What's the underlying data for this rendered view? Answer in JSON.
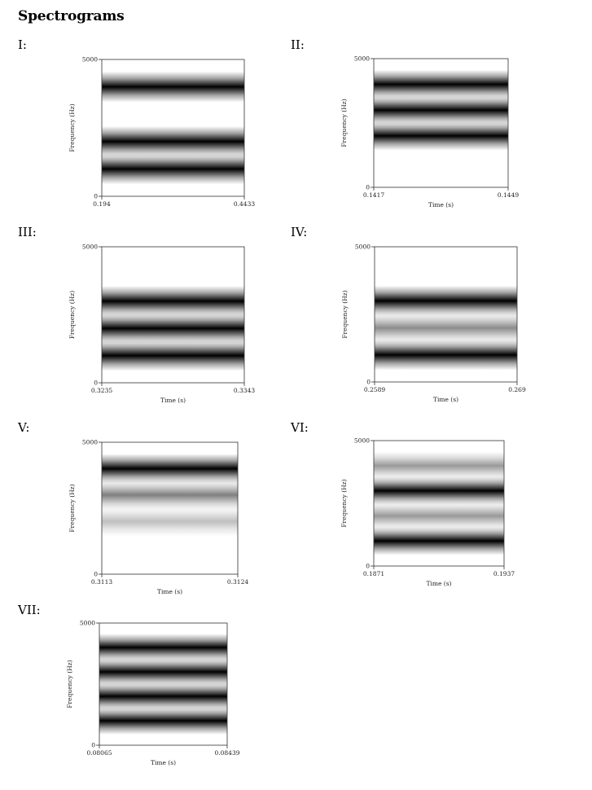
{
  "title": "Spectrograms",
  "chart_data": [
    {
      "id": "I",
      "label": "I:",
      "type": "heatmap",
      "title": "",
      "xlabel": "",
      "ylabel": "Frequency (Hz)",
      "xlim": [
        0.194,
        0.4433
      ],
      "ylim": [
        0,
        5000
      ],
      "xticks": [
        "0.194",
        "0.4433"
      ],
      "yticks": [
        "0",
        "5000"
      ],
      "bands": [
        {
          "center": 4000,
          "halfwidth": 450,
          "intensity": 1.0
        },
        {
          "center": 2000,
          "halfwidth": 450,
          "intensity": 1.0
        },
        {
          "center": 1000,
          "halfwidth": 450,
          "intensity": 1.0
        }
      ]
    },
    {
      "id": "II",
      "label": "II:",
      "type": "heatmap",
      "title": "",
      "xlabel": "Time (s)",
      "ylabel": "Frequency (Hz)",
      "xlim": [
        0.1417,
        0.1449
      ],
      "ylim": [
        0,
        5000
      ],
      "xticks": [
        "0.1417",
        "0.1449"
      ],
      "yticks": [
        "0",
        "5000"
      ],
      "bands": [
        {
          "center": 4000,
          "halfwidth": 450,
          "intensity": 1.0
        },
        {
          "center": 3000,
          "halfwidth": 450,
          "intensity": 1.0
        },
        {
          "center": 2000,
          "halfwidth": 450,
          "intensity": 1.0
        }
      ]
    },
    {
      "id": "III",
      "label": "III:",
      "type": "heatmap",
      "title": "",
      "xlabel": "Time (s)",
      "ylabel": "Frequency (Hz)",
      "xlim": [
        0.3235,
        0.3343
      ],
      "ylim": [
        0,
        5000
      ],
      "xticks": [
        "0.3235",
        "0.3343"
      ],
      "yticks": [
        "0",
        "5000"
      ],
      "bands": [
        {
          "center": 3000,
          "halfwidth": 450,
          "intensity": 1.0
        },
        {
          "center": 2000,
          "halfwidth": 450,
          "intensity": 1.0
        },
        {
          "center": 1000,
          "halfwidth": 450,
          "intensity": 1.0
        }
      ]
    },
    {
      "id": "IV",
      "label": "IV:",
      "type": "heatmap",
      "title": "",
      "xlabel": "Time (s)",
      "ylabel": "Frequency (Hz)",
      "xlim": [
        0.2589,
        0.269
      ],
      "ylim": [
        0,
        5000
      ],
      "xticks": [
        "0.2589",
        "0.269"
      ],
      "yticks": [
        "0",
        "5000"
      ],
      "bands": [
        {
          "center": 3000,
          "halfwidth": 450,
          "intensity": 1.0
        },
        {
          "center": 2000,
          "halfwidth": 450,
          "intensity": 0.45
        },
        {
          "center": 1000,
          "halfwidth": 450,
          "intensity": 1.0
        }
      ]
    },
    {
      "id": "V",
      "label": "V:",
      "type": "heatmap",
      "title": "",
      "xlabel": "Time (s)",
      "ylabel": "Frequency (Hz)",
      "xlim": [
        0.3113,
        0.3124
      ],
      "ylim": [
        0,
        5000
      ],
      "xticks": [
        "0.3113",
        "0.3124"
      ],
      "yticks": [
        "0",
        "5000"
      ],
      "bands": [
        {
          "center": 4000,
          "halfwidth": 450,
          "intensity": 1.0
        },
        {
          "center": 3000,
          "halfwidth": 450,
          "intensity": 0.5
        },
        {
          "center": 2000,
          "halfwidth": 450,
          "intensity": 0.25
        }
      ]
    },
    {
      "id": "VI",
      "label": "VI:",
      "type": "heatmap",
      "title": "",
      "xlabel": "Time (s)",
      "ylabel": "Frequency (Hz)",
      "xlim": [
        0.1871,
        0.1937
      ],
      "ylim": [
        0,
        5000
      ],
      "xticks": [
        "0.1871",
        "0.1937"
      ],
      "yticks": [
        "0",
        "5000"
      ],
      "bands": [
        {
          "center": 4000,
          "halfwidth": 450,
          "intensity": 0.4
        },
        {
          "center": 3000,
          "halfwidth": 450,
          "intensity": 1.0
        },
        {
          "center": 2000,
          "halfwidth": 450,
          "intensity": 0.4
        },
        {
          "center": 1000,
          "halfwidth": 450,
          "intensity": 1.0
        }
      ]
    },
    {
      "id": "VII",
      "label": "VII:",
      "type": "heatmap",
      "title": "",
      "xlabel": "Time (s)",
      "ylabel": "Frequency (Hz)",
      "xlim": [
        0.08065,
        0.08439
      ],
      "ylim": [
        0,
        5000
      ],
      "xticks": [
        "0.08065",
        "0.08439"
      ],
      "yticks": [
        "0",
        "5000"
      ],
      "bands": [
        {
          "center": 4000,
          "halfwidth": 450,
          "intensity": 1.0
        },
        {
          "center": 3000,
          "halfwidth": 450,
          "intensity": 1.0
        },
        {
          "center": 2000,
          "halfwidth": 450,
          "intensity": 1.0
        },
        {
          "center": 1000,
          "halfwidth": 450,
          "intensity": 1.0
        }
      ]
    }
  ]
}
